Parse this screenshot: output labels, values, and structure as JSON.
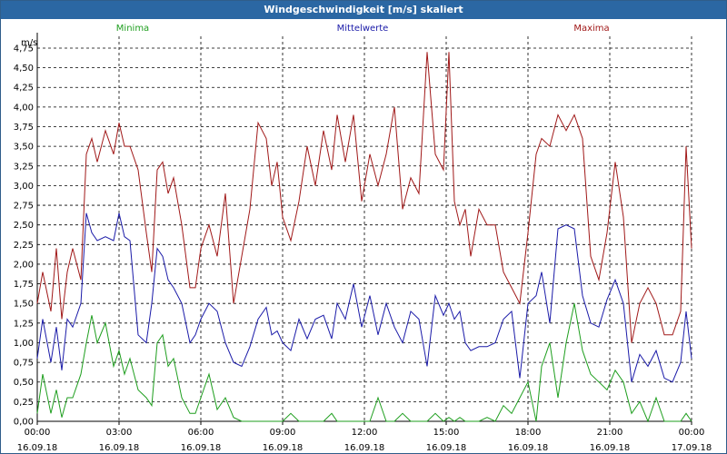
{
  "window": {
    "title": "Windgeschwindigkeit [m/s] skaliert"
  },
  "chart_data": {
    "type": "line",
    "title": "Windgeschwindigkeit [m/s] skaliert",
    "unit": "m/s",
    "legend_placement": "top",
    "grid": true,
    "ylim": [
      0,
      4.9
    ],
    "xlim": [
      0,
      24
    ],
    "yticks": [
      "0,00",
      "0,25",
      "0,50",
      "0,75",
      "1,00",
      "1,25",
      "1,50",
      "1,75",
      "2,00",
      "2,25",
      "2,50",
      "2,75",
      "3,00",
      "3,25",
      "3,50",
      "3,75",
      "4,00",
      "4,25",
      "4,50",
      "4,75"
    ],
    "xticks": [
      {
        "time": "00:00",
        "date": "16.09.18"
      },
      {
        "time": "03:00",
        "date": "16.09.18"
      },
      {
        "time": "06:00",
        "date": "16.09.18"
      },
      {
        "time": "09:00",
        "date": "16.09.18"
      },
      {
        "time": "12:00",
        "date": "16.09.18"
      },
      {
        "time": "15:00",
        "date": "16.09.18"
      },
      {
        "time": "18:00",
        "date": "16.09.18"
      },
      {
        "time": "21:00",
        "date": "16.09.18"
      },
      {
        "time": "00:00",
        "date": "17.09.18"
      }
    ],
    "series": [
      {
        "name": "Maxima",
        "color": "#a01818",
        "x": [
          0,
          0.2,
          0.5,
          0.7,
          0.9,
          1.1,
          1.3,
          1.6,
          1.8,
          2.0,
          2.2,
          2.5,
          2.8,
          3.0,
          3.2,
          3.4,
          3.7,
          4.0,
          4.2,
          4.4,
          4.6,
          4.8,
          5.0,
          5.3,
          5.6,
          5.8,
          6.0,
          6.3,
          6.6,
          6.9,
          7.2,
          7.5,
          7.8,
          8.1,
          8.4,
          8.6,
          8.8,
          9.0,
          9.3,
          9.6,
          9.9,
          10.2,
          10.5,
          10.8,
          11.0,
          11.3,
          11.6,
          11.9,
          12.2,
          12.5,
          12.8,
          13.1,
          13.4,
          13.7,
          14.0,
          14.3,
          14.6,
          14.9,
          15.1,
          15.3,
          15.5,
          15.7,
          15.9,
          16.2,
          16.5,
          16.8,
          17.1,
          17.4,
          17.7,
          18.0,
          18.3,
          18.5,
          18.8,
          19.1,
          19.4,
          19.7,
          20.0,
          20.3,
          20.6,
          20.9,
          21.2,
          21.5,
          21.8,
          22.1,
          22.4,
          22.7,
          23.0,
          23.3,
          23.6,
          23.8,
          24
        ],
        "y": [
          1.5,
          1.9,
          1.4,
          2.2,
          1.3,
          1.9,
          2.2,
          1.8,
          3.4,
          3.6,
          3.3,
          3.7,
          3.4,
          3.8,
          3.5,
          3.5,
          3.2,
          2.4,
          1.9,
          3.2,
          3.3,
          2.9,
          3.1,
          2.5,
          1.7,
          1.7,
          2.2,
          2.5,
          2.1,
          2.9,
          1.5,
          2.1,
          2.7,
          3.8,
          3.6,
          3.0,
          3.3,
          2.6,
          2.3,
          2.8,
          3.5,
          3.0,
          3.7,
          3.2,
          3.9,
          3.3,
          3.9,
          2.8,
          3.4,
          3.0,
          3.4,
          4.0,
          2.7,
          3.1,
          2.9,
          4.7,
          3.4,
          3.2,
          4.7,
          2.8,
          2.5,
          2.7,
          2.1,
          2.7,
          2.5,
          2.5,
          1.9,
          1.7,
          1.5,
          2.4,
          3.4,
          3.6,
          3.5,
          3.9,
          3.7,
          3.9,
          3.6,
          2.1,
          1.8,
          2.4,
          3.3,
          2.6,
          1.0,
          1.5,
          1.7,
          1.5,
          1.1,
          1.1,
          1.4,
          3.5,
          2.2
        ]
      },
      {
        "name": "Mittelwerte",
        "color": "#1a1aa8",
        "x": [
          0,
          0.2,
          0.5,
          0.7,
          0.9,
          1.1,
          1.3,
          1.6,
          1.8,
          2.0,
          2.2,
          2.5,
          2.8,
          3.0,
          3.2,
          3.4,
          3.7,
          4.0,
          4.2,
          4.4,
          4.6,
          4.8,
          5.0,
          5.3,
          5.6,
          5.8,
          6.0,
          6.3,
          6.6,
          6.9,
          7.2,
          7.5,
          7.8,
          8.1,
          8.4,
          8.6,
          8.8,
          9.0,
          9.3,
          9.6,
          9.9,
          10.2,
          10.5,
          10.8,
          11.0,
          11.3,
          11.6,
          11.9,
          12.2,
          12.5,
          12.8,
          13.1,
          13.4,
          13.7,
          14.0,
          14.3,
          14.6,
          14.9,
          15.1,
          15.3,
          15.5,
          15.7,
          15.9,
          16.2,
          16.5,
          16.8,
          17.1,
          17.4,
          17.7,
          18.0,
          18.3,
          18.5,
          18.8,
          19.1,
          19.4,
          19.7,
          20.0,
          20.3,
          20.6,
          20.9,
          21.2,
          21.5,
          21.8,
          22.1,
          22.4,
          22.7,
          23.0,
          23.3,
          23.6,
          23.8,
          24
        ],
        "y": [
          0.8,
          1.3,
          0.75,
          1.2,
          0.65,
          1.3,
          1.2,
          1.5,
          2.65,
          2.4,
          2.3,
          2.35,
          2.3,
          2.65,
          2.35,
          2.3,
          1.1,
          1.0,
          1.5,
          2.2,
          2.1,
          1.8,
          1.7,
          1.5,
          1.0,
          1.1,
          1.3,
          1.5,
          1.4,
          1.0,
          0.75,
          0.7,
          0.95,
          1.3,
          1.45,
          1.1,
          1.15,
          1.0,
          0.9,
          1.3,
          1.05,
          1.3,
          1.35,
          1.05,
          1.5,
          1.3,
          1.75,
          1.2,
          1.6,
          1.1,
          1.5,
          1.2,
          1.0,
          1.4,
          1.3,
          0.7,
          1.6,
          1.35,
          1.5,
          1.3,
          1.4,
          1.0,
          0.9,
          0.95,
          0.95,
          1.0,
          1.3,
          1.4,
          0.55,
          1.5,
          1.6,
          1.9,
          1.25,
          2.45,
          2.5,
          2.45,
          1.6,
          1.25,
          1.2,
          1.55,
          1.8,
          1.5,
          0.5,
          0.85,
          0.7,
          0.9,
          0.55,
          0.5,
          0.75,
          1.4,
          0.8
        ]
      },
      {
        "name": "Minima",
        "color": "#1e9e1e",
        "x": [
          0,
          0.2,
          0.5,
          0.7,
          0.9,
          1.1,
          1.3,
          1.6,
          1.8,
          2.0,
          2.2,
          2.5,
          2.8,
          3.0,
          3.2,
          3.4,
          3.7,
          4.0,
          4.2,
          4.4,
          4.6,
          4.8,
          5.0,
          5.3,
          5.6,
          5.8,
          6.0,
          6.3,
          6.6,
          6.9,
          7.2,
          7.5,
          7.8,
          8.1,
          8.4,
          8.6,
          8.8,
          9.0,
          9.3,
          9.6,
          9.9,
          10.2,
          10.5,
          10.8,
          11.0,
          11.3,
          11.6,
          11.9,
          12.2,
          12.5,
          12.8,
          13.1,
          13.4,
          13.7,
          14.0,
          14.3,
          14.6,
          14.9,
          15.1,
          15.3,
          15.5,
          15.7,
          15.9,
          16.2,
          16.5,
          16.8,
          17.1,
          17.4,
          17.7,
          18.0,
          18.3,
          18.5,
          18.8,
          19.1,
          19.4,
          19.7,
          20.0,
          20.3,
          20.6,
          20.9,
          21.2,
          21.5,
          21.8,
          22.1,
          22.4,
          22.7,
          23.0,
          23.3,
          23.6,
          23.8,
          24
        ],
        "y": [
          0.1,
          0.6,
          0.1,
          0.4,
          0.05,
          0.3,
          0.3,
          0.6,
          1.0,
          1.35,
          1.0,
          1.25,
          0.7,
          0.9,
          0.6,
          0.8,
          0.4,
          0.3,
          0.2,
          1.0,
          1.1,
          0.7,
          0.8,
          0.3,
          0.1,
          0.1,
          0.3,
          0.6,
          0.15,
          0.3,
          0.05,
          0.0,
          0.0,
          0.0,
          0.0,
          0.0,
          0.0,
          0.0,
          0.1,
          0.0,
          0.0,
          0.0,
          0.0,
          0.1,
          0.0,
          0.0,
          0.0,
          0.0,
          0.0,
          0.3,
          0.0,
          0.0,
          0.1,
          0.0,
          0.0,
          0.0,
          0.1,
          0.0,
          0.05,
          0.0,
          0.05,
          0.0,
          0.0,
          0.0,
          0.05,
          0.0,
          0.2,
          0.1,
          0.3,
          0.5,
          0.0,
          0.7,
          1.0,
          0.3,
          1.0,
          1.5,
          0.9,
          0.6,
          0.5,
          0.4,
          0.65,
          0.5,
          0.1,
          0.25,
          0.0,
          0.3,
          0.0,
          0.0,
          0.0,
          0.1,
          0.0
        ]
      }
    ]
  }
}
